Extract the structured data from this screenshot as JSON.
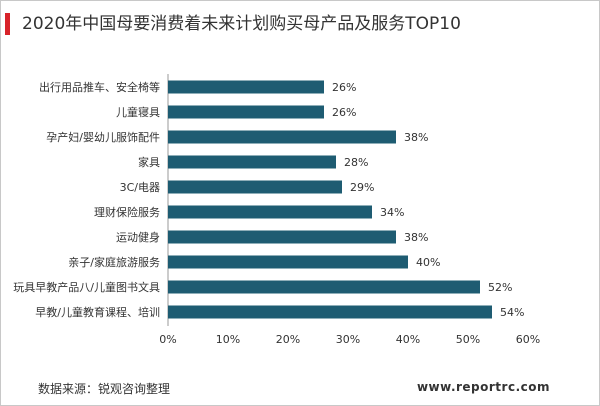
{
  "title": "2020年中国母要消费着未来计划购买母产品及服务TOP10",
  "source": "数据来源：锐观咨询整理",
  "website": "www.reportrc.com",
  "colors": {
    "bar": "#1e5c72",
    "title_accent": "#d8232a",
    "axis": "#999999",
    "text": "#333333"
  },
  "chart_data": {
    "type": "bar",
    "orientation": "horizontal",
    "categories": [
      "出行用品推车、安全椅等",
      "儿童寝具",
      "孕产妇/婴幼儿服饰配件",
      "家具",
      "3C/电器",
      "理财保险服务",
      "运动健身",
      "亲子/家庭旅游服务",
      "玩具早教产品八/儿童图书文具",
      "早教/儿童教育课程、培训"
    ],
    "values": [
      26,
      26,
      38,
      28,
      29,
      34,
      38,
      40,
      52,
      54
    ],
    "value_labels": [
      "26%",
      "26%",
      "38%",
      "28%",
      "29%",
      "34%",
      "38%",
      "40%",
      "52%",
      "54%"
    ],
    "xlim": [
      0,
      60
    ],
    "xticks": [
      0,
      10,
      20,
      30,
      40,
      50,
      60
    ],
    "xtick_labels": [
      "0%",
      "10%",
      "20%",
      "30%",
      "40%",
      "50%",
      "60%"
    ],
    "grid": false
  }
}
